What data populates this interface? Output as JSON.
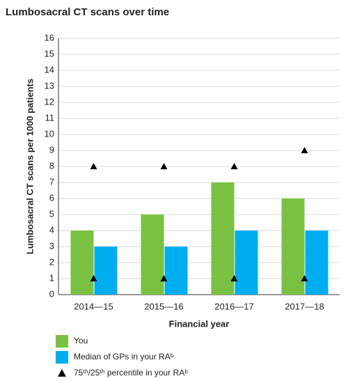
{
  "chart_data": {
    "type": "bar",
    "title": "Lumbosacral CT scans over time",
    "x_label": "Financial year",
    "y_label": "Lumbosacral CT scans per 1000 patients",
    "categories": [
      "2014—15",
      "2015—16",
      "2016—17",
      "2017—18"
    ],
    "series": [
      {
        "name": "You",
        "color": "#7ac143",
        "values": [
          4,
          5,
          7,
          6
        ]
      },
      {
        "name": "Median of GPs in your RAᵇ",
        "color": "#00aeef",
        "values": [
          3,
          3,
          4,
          4
        ]
      },
      {
        "name": "75ᵗʰ/25ᵗʰ percentile in your RAᵇ",
        "color": "#000000",
        "marker": "triangle",
        "values": [
          8,
          8,
          8,
          9
        ],
        "values_low": [
          1,
          1,
          1,
          1
        ]
      }
    ],
    "ylim": [
      0,
      16
    ],
    "yticks": [
      0,
      1,
      2,
      3,
      4,
      5,
      6,
      7,
      8,
      9,
      10,
      11,
      12,
      13,
      14,
      15,
      16
    ],
    "grid": true
  }
}
